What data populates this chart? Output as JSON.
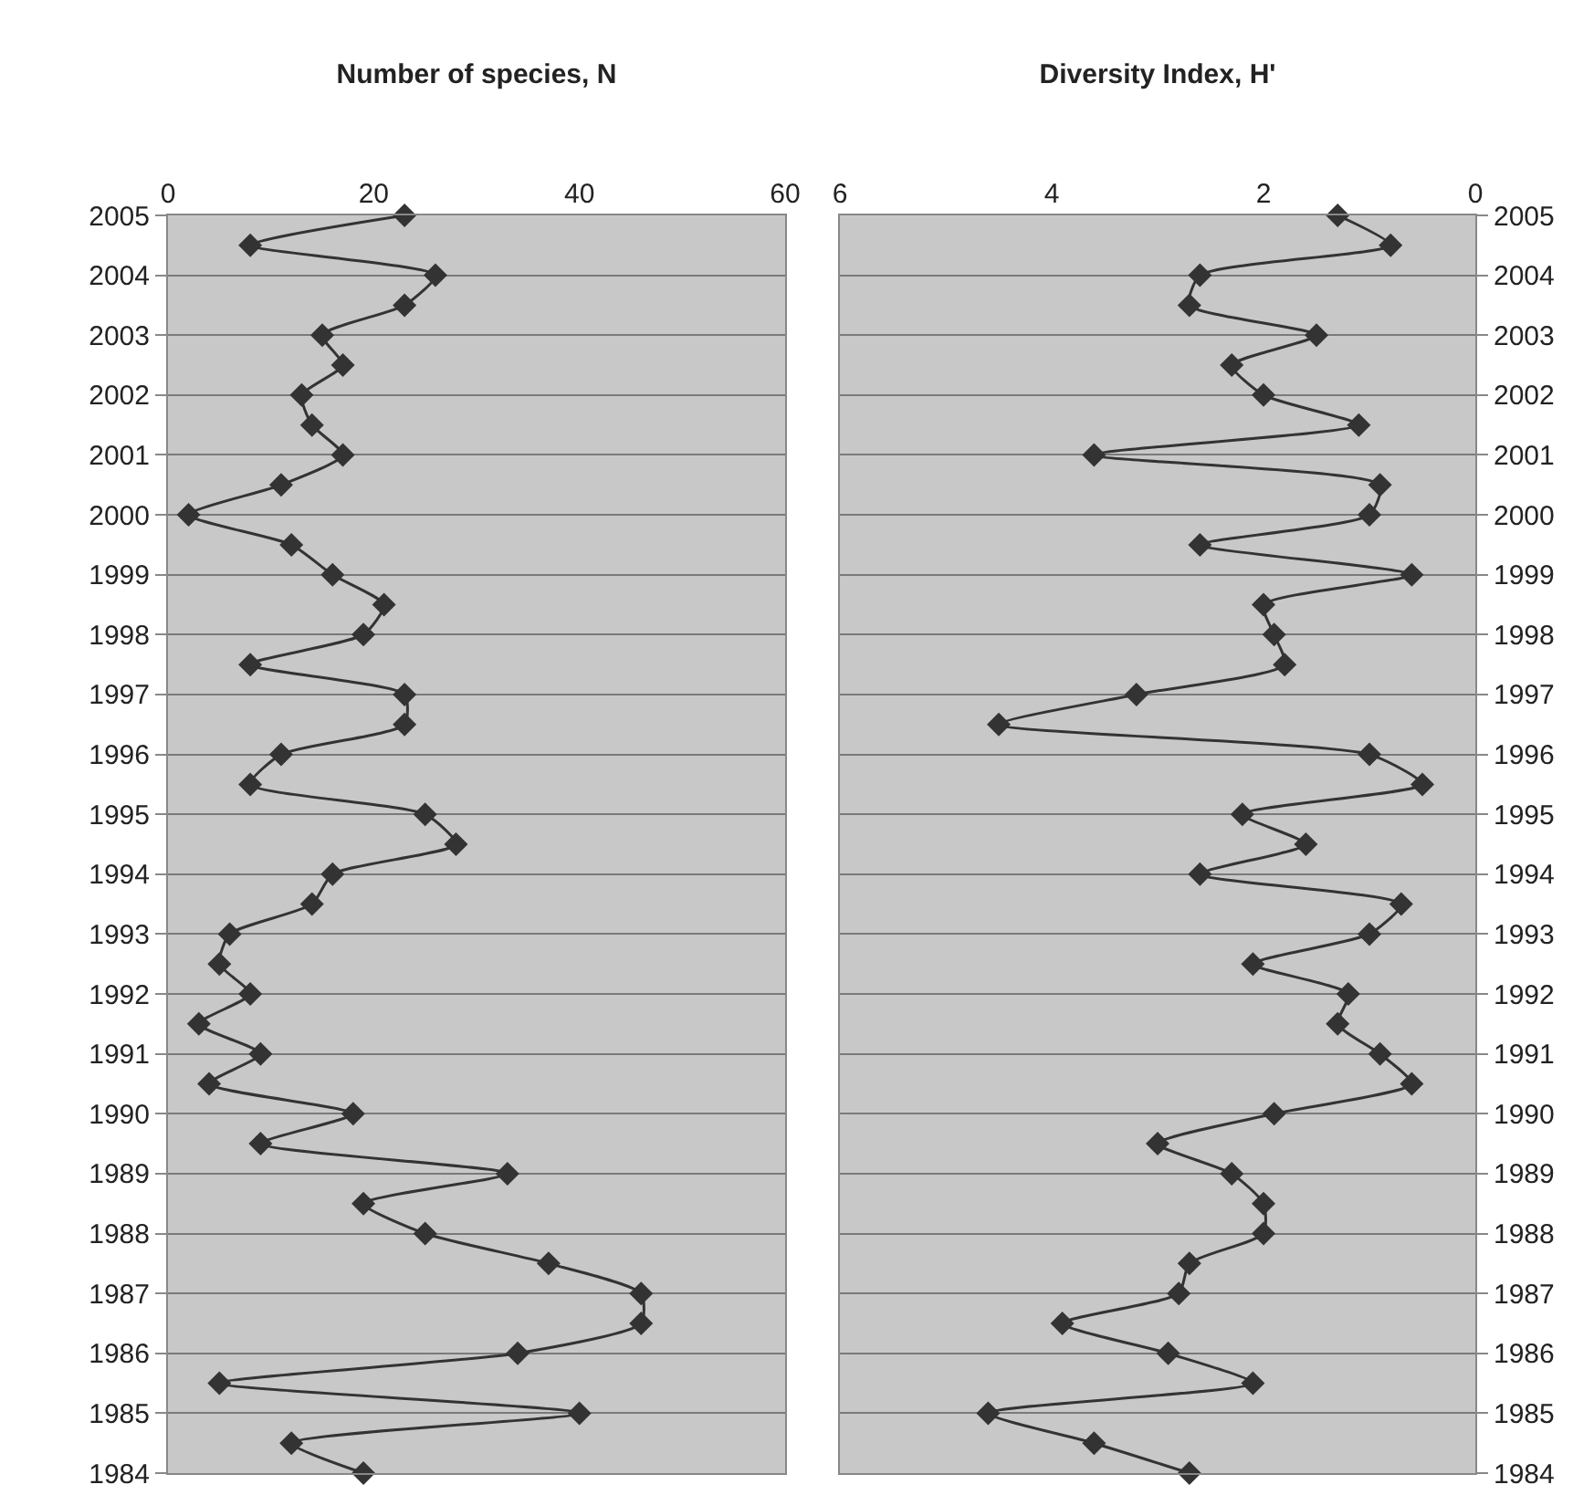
{
  "chart_data": [
    {
      "type": "line",
      "title": "Number of species, N",
      "orientation": "horizontal",
      "grid": "y",
      "marker": "diamond",
      "line_style": "solid",
      "x": [
        2005,
        2004.5,
        2004,
        2003.5,
        2003,
        2002.5,
        2002,
        2001.5,
        2001,
        2000.5,
        2000,
        1999.5,
        1999,
        1998.5,
        1998,
        1997.5,
        1997,
        1996.5,
        1996,
        1995.5,
        1995,
        1994.5,
        1994,
        1993.5,
        1993,
        1992.5,
        1992,
        1991.5,
        1991,
        1990.5,
        1990,
        1989.5,
        1989,
        1988.5,
        1988,
        1987.5,
        1987,
        1986.5,
        1986,
        1985.5,
        1985,
        1984.5,
        1984
      ],
      "series": [
        {
          "color": "#333333",
          "values": [
            23,
            8,
            26,
            23,
            15,
            17,
            13,
            14,
            17,
            11,
            2,
            12,
            16,
            21,
            19,
            8,
            23,
            23,
            11,
            8,
            25,
            28,
            16,
            14,
            6,
            5,
            8,
            3,
            9,
            4,
            18,
            9,
            33,
            19,
            25,
            37,
            46,
            46,
            34,
            5,
            40,
            12,
            19
          ]
        }
      ],
      "xlim": [
        0,
        60
      ],
      "xticks": [
        0,
        20,
        40,
        60
      ],
      "ylim": [
        1984,
        2005
      ],
      "yticks": [
        1984,
        1985,
        1986,
        1987,
        1988,
        1989,
        1990,
        1991,
        1992,
        1993,
        1994,
        1995,
        1996,
        1997,
        1998,
        1999,
        2000,
        2001,
        2002,
        2003,
        2004,
        2005
      ]
    },
    {
      "type": "line",
      "title": "Diversity Index, H'",
      "orientation": "horizontal",
      "grid": "y",
      "marker": "diamond",
      "line_style": "solid",
      "x": [
        2005,
        2004.5,
        2004,
        2003.5,
        2003,
        2002.5,
        2002,
        2001.5,
        2001,
        2000.5,
        2000,
        1999.5,
        1999,
        1998.5,
        1998,
        1997.5,
        1997,
        1996.5,
        1996,
        1995.5,
        1995,
        1994.5,
        1994,
        1993.5,
        1993,
        1992.5,
        1992,
        1991.5,
        1991,
        1990.5,
        1990,
        1989.5,
        1989,
        1988.5,
        1988,
        1987.5,
        1987,
        1986.5,
        1986,
        1985.5,
        1985,
        1984.5,
        1984
      ],
      "series": [
        {
          "color": "#333333",
          "values": [
            1.3,
            0.8,
            2.6,
            2.7,
            1.5,
            2.3,
            2.0,
            1.1,
            3.6,
            0.9,
            1.0,
            2.6,
            0.6,
            2.0,
            1.9,
            1.8,
            3.2,
            4.5,
            1.0,
            0.5,
            2.2,
            1.6,
            2.6,
            0.7,
            1.0,
            2.1,
            1.2,
            1.3,
            0.9,
            0.6,
            1.9,
            3.0,
            2.3,
            2.0,
            2.0,
            2.7,
            2.8,
            3.9,
            2.9,
            2.1,
            4.6,
            3.6,
            2.7
          ]
        }
      ],
      "xlim": [
        6,
        0
      ],
      "xticks": [
        6,
        4,
        2,
        0
      ],
      "ylim": [
        1984,
        2005
      ],
      "yticks": [
        1984,
        1985,
        1986,
        1987,
        1988,
        1989,
        1990,
        1991,
        1992,
        1993,
        1994,
        1995,
        1996,
        1997,
        1998,
        1999,
        2000,
        2001,
        2002,
        2003,
        2004,
        2005
      ]
    }
  ]
}
